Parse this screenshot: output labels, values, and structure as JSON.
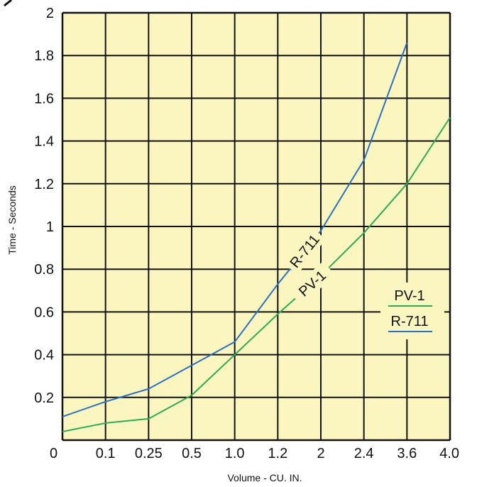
{
  "chart_data": {
    "type": "line",
    "title": "",
    "xlabel": "Volume - CU. IN.",
    "ylabel": "Time - Seconds",
    "x_tick_labels": [
      "0",
      "0.1",
      "0.25",
      "0.5",
      "1.0",
      "1.2",
      "2",
      "2.4",
      "3.6",
      "4.0"
    ],
    "y_tick_labels": [
      "0",
      "0.2",
      "0.4",
      "0.6",
      "0.8",
      "1",
      "1.2",
      "1.4",
      "1.6",
      "1.8",
      "2"
    ],
    "ylim": [
      0,
      2
    ],
    "grid": true,
    "legend_position": "right",
    "background_color": "#fbf6bf",
    "series": [
      {
        "name": "R-711",
        "color": "#2b6fc4",
        "x": [
          "0",
          "0.1",
          "0.25",
          "0.5",
          "1.0",
          "1.2",
          "2",
          "2.4",
          "3.6"
        ],
        "values": [
          0.11,
          0.18,
          0.24,
          0.35,
          0.46,
          0.73,
          0.98,
          1.31,
          1.86
        ]
      },
      {
        "name": "PV-1",
        "color": "#2fab55",
        "x": [
          "0",
          "0.1",
          "0.25",
          "0.5",
          "1.0",
          "1.2",
          "2",
          "2.4",
          "3.6",
          "4.0"
        ],
        "values": [
          0.04,
          0.08,
          0.1,
          0.21,
          0.4,
          0.59,
          0.77,
          0.97,
          1.2,
          1.51
        ]
      }
    ],
    "annotations": [
      {
        "text": "R-711",
        "series": "R-711"
      },
      {
        "text": "PV-1",
        "series": "PV-1"
      }
    ]
  }
}
